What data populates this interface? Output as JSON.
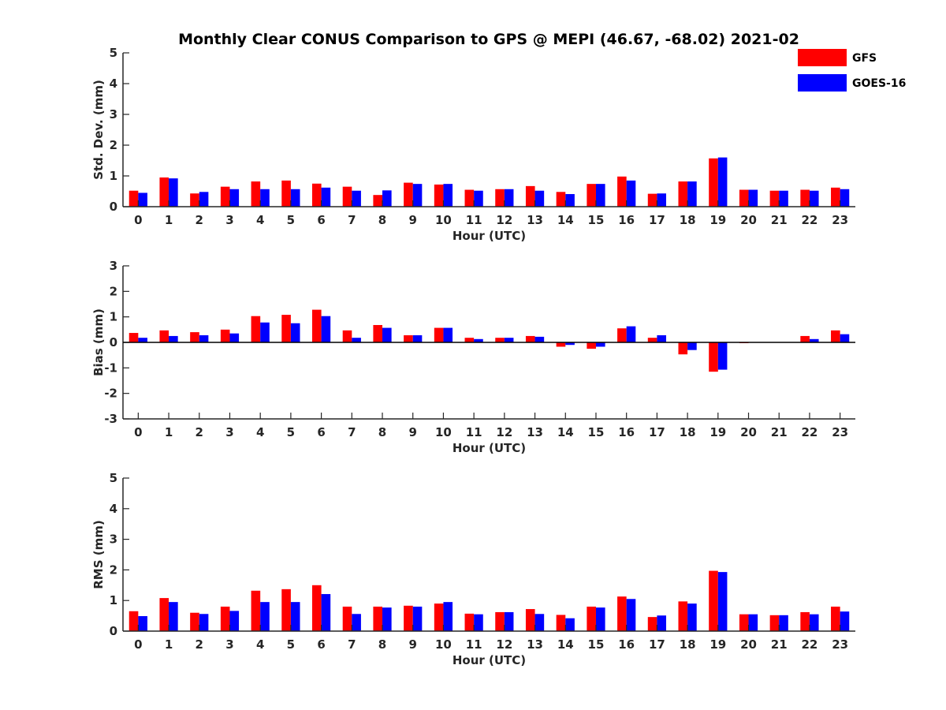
{
  "title": "Monthly Clear CONUS Comparison to GPS @ MEPI (46.67, -68.02) 2021-02",
  "legend": [
    {
      "name": "GFS",
      "color": "#ff0000"
    },
    {
      "name": "GOES-16",
      "color": "#0000ff"
    }
  ],
  "chart_data": [
    {
      "type": "bar",
      "xlabel": "Hour (UTC)",
      "ylabel": "Std. Dev. (mm)",
      "ylim": [
        0,
        5
      ],
      "yticks": [
        0,
        1,
        2,
        3,
        4,
        5
      ],
      "categories": [
        "0",
        "1",
        "2",
        "3",
        "4",
        "5",
        "6",
        "7",
        "8",
        "9",
        "10",
        "11",
        "12",
        "13",
        "14",
        "15",
        "16",
        "17",
        "18",
        "19",
        "20",
        "21",
        "22",
        "23"
      ],
      "series": [
        {
          "name": "GFS",
          "color": "#ff0000",
          "values": [
            0.52,
            0.95,
            0.43,
            0.65,
            0.82,
            0.85,
            0.75,
            0.65,
            0.38,
            0.78,
            0.72,
            0.55,
            0.57,
            0.67,
            0.48,
            0.74,
            0.98,
            0.42,
            0.82,
            1.57,
            0.55,
            0.52,
            0.55,
            0.62
          ]
        },
        {
          "name": "GOES-16",
          "color": "#0000ff",
          "values": [
            0.45,
            0.92,
            0.48,
            0.57,
            0.57,
            0.57,
            0.62,
            0.52,
            0.53,
            0.74,
            0.74,
            0.52,
            0.57,
            0.52,
            0.41,
            0.74,
            0.85,
            0.43,
            0.82,
            1.6,
            0.55,
            0.52,
            0.52,
            0.57
          ]
        }
      ]
    },
    {
      "type": "bar",
      "xlabel": "Hour (UTC)",
      "ylabel": "Bias (mm)",
      "ylim": [
        -3,
        3
      ],
      "yticks": [
        -3,
        -2,
        -1,
        0,
        1,
        2,
        3
      ],
      "categories": [
        "0",
        "1",
        "2",
        "3",
        "4",
        "5",
        "6",
        "7",
        "8",
        "9",
        "10",
        "11",
        "12",
        "13",
        "14",
        "15",
        "16",
        "17",
        "18",
        "19",
        "20",
        "21",
        "22",
        "23"
      ],
      "series": [
        {
          "name": "GFS",
          "color": "#ff0000",
          "values": [
            0.37,
            0.47,
            0.4,
            0.5,
            1.03,
            1.08,
            1.28,
            0.47,
            0.68,
            0.28,
            0.57,
            0.18,
            0.18,
            0.25,
            -0.17,
            -0.25,
            0.55,
            0.18,
            -0.47,
            -1.15,
            -0.03,
            0.0,
            0.25,
            0.47
          ]
        },
        {
          "name": "GOES-16",
          "color": "#0000ff",
          "values": [
            0.18,
            0.25,
            0.28,
            0.35,
            0.78,
            0.75,
            1.03,
            0.18,
            0.57,
            0.28,
            0.57,
            0.13,
            0.18,
            0.22,
            -0.1,
            -0.17,
            0.63,
            0.28,
            -0.3,
            -1.07,
            0.0,
            0.0,
            0.13,
            0.32
          ]
        }
      ]
    },
    {
      "type": "bar",
      "xlabel": "Hour (UTC)",
      "ylabel": "RMS (mm)",
      "ylim": [
        0,
        5
      ],
      "yticks": [
        0,
        1,
        2,
        3,
        4,
        5
      ],
      "categories": [
        "0",
        "1",
        "2",
        "3",
        "4",
        "5",
        "6",
        "7",
        "8",
        "9",
        "10",
        "11",
        "12",
        "13",
        "14",
        "15",
        "16",
        "17",
        "18",
        "19",
        "20",
        "21",
        "22",
        "23"
      ],
      "series": [
        {
          "name": "GFS",
          "color": "#ff0000",
          "values": [
            0.65,
            1.08,
            0.6,
            0.8,
            1.32,
            1.37,
            1.5,
            0.8,
            0.8,
            0.83,
            0.9,
            0.57,
            0.62,
            0.72,
            0.53,
            0.8,
            1.13,
            0.46,
            0.97,
            1.97,
            0.55,
            0.52,
            0.62,
            0.8
          ]
        },
        {
          "name": "GOES-16",
          "color": "#0000ff",
          "values": [
            0.49,
            0.95,
            0.56,
            0.66,
            0.95,
            0.95,
            1.21,
            0.56,
            0.77,
            0.8,
            0.95,
            0.55,
            0.62,
            0.56,
            0.42,
            0.77,
            1.05,
            0.51,
            0.9,
            1.93,
            0.55,
            0.52,
            0.55,
            0.64
          ]
        }
      ]
    }
  ]
}
